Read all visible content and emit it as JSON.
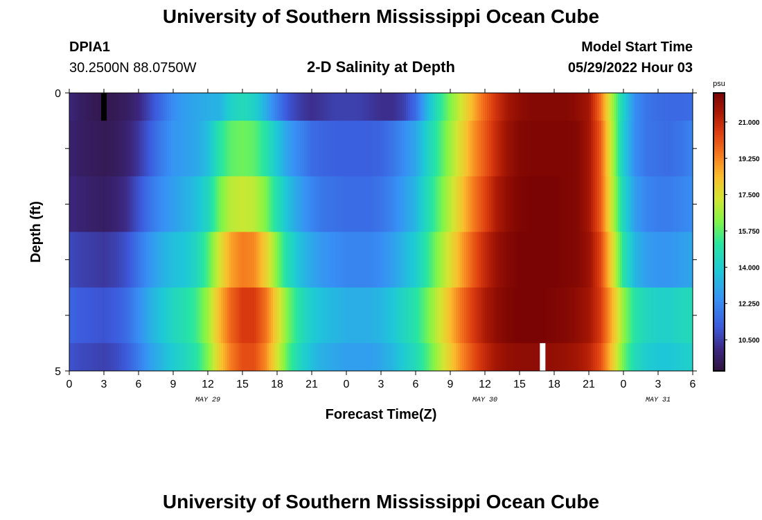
{
  "header": {
    "title": "University of Southern Mississippi Ocean Cube",
    "station_id": "DPIA1",
    "location": "30.2500N  88.0750W",
    "subtitle": "2-D Salinity at Depth",
    "model_start_label": "Model Start Time",
    "model_start_value": "05/29/2022 Hour 03"
  },
  "footer": {
    "title": "University of Southern Mississippi Ocean Cube"
  },
  "chart_data": {
    "type": "heatmap",
    "title": "2-D Salinity at Depth",
    "xlabel": "Forecast Time(Z)",
    "ylabel": "Depth (ft)",
    "x_tick_labels": [
      "0",
      "3",
      "6",
      "9",
      "12",
      "15",
      "18",
      "21",
      "0",
      "3",
      "6",
      "9",
      "12",
      "15",
      "18",
      "21",
      "0",
      "3",
      "6"
    ],
    "x_day_labels": [
      {
        "label": "MAY 29",
        "hour": 12
      },
      {
        "label": "MAY 30",
        "hour": 36
      },
      {
        "label": "MAY 31",
        "hour": 51
      }
    ],
    "x_range_hours": [
      0,
      54
    ],
    "y_tick_labels": [
      "0",
      "5"
    ],
    "y_range": [
      0,
      5
    ],
    "depth_levels": 5,
    "colorbar": {
      "unit": "psu",
      "ticks": [
        "21.000",
        "19.250",
        "17.500",
        "15.750",
        "14.000",
        "12.250",
        "10.500"
      ],
      "tick_values": [
        21.0,
        19.25,
        17.5,
        15.75,
        14.0,
        12.25,
        10.5
      ],
      "min": 9.0,
      "max": 22.4
    },
    "grid": false,
    "row_profiles": [
      {
        "row_label": "0",
        "hours": [
          0,
          1,
          2,
          3,
          4,
          5,
          6,
          7,
          8,
          9,
          10,
          11,
          12,
          13,
          14,
          15,
          16,
          17,
          18,
          19,
          20,
          21,
          22,
          23,
          24,
          25,
          26,
          27,
          28,
          29,
          30,
          31,
          32,
          33,
          34,
          35,
          36,
          37,
          38,
          39,
          40,
          41,
          42,
          43,
          44,
          45,
          46,
          47,
          48,
          49,
          50,
          51,
          52,
          53,
          54
        ],
        "values": [
          10.0,
          9.6,
          9.4,
          9.3,
          9.4,
          9.6,
          10.0,
          10.8,
          11.6,
          12.4,
          12.8,
          13.0,
          13.2,
          13.3,
          14.2,
          14.6,
          14.2,
          13.2,
          12.0,
          11.0,
          10.5,
          10.2,
          10.4,
          10.6,
          10.6,
          10.6,
          10.4,
          10.2,
          10.2,
          10.6,
          11.6,
          13.4,
          15.0,
          16.2,
          17.4,
          18.6,
          19.8,
          20.8,
          21.6,
          22.0,
          22.2,
          22.2,
          22.2,
          22.2,
          22.0,
          21.6,
          19.6,
          16.8,
          14.2,
          12.4,
          11.8,
          11.6,
          11.5,
          11.5,
          11.6
        ]
      },
      {
        "row_label": "1",
        "hours": [
          0,
          1,
          2,
          3,
          4,
          5,
          6,
          7,
          8,
          9,
          10,
          11,
          12,
          13,
          14,
          15,
          16,
          17,
          18,
          19,
          20,
          21,
          22,
          23,
          24,
          25,
          26,
          27,
          28,
          29,
          30,
          31,
          32,
          33,
          34,
          35,
          36,
          37,
          38,
          39,
          40,
          41,
          42,
          43,
          44,
          45,
          46,
          47,
          48,
          49,
          50,
          51,
          52,
          53,
          54
        ],
        "values": [
          9.8,
          9.6,
          9.5,
          9.4,
          9.5,
          9.8,
          10.4,
          11.2,
          12.0,
          12.6,
          12.8,
          13.0,
          13.6,
          15.0,
          15.8,
          16.0,
          15.8,
          15.0,
          13.8,
          12.8,
          12.2,
          11.6,
          11.4,
          11.3,
          11.3,
          11.3,
          11.3,
          11.4,
          11.8,
          12.4,
          13.0,
          14.2,
          15.4,
          16.6,
          17.8,
          19.0,
          20.0,
          21.0,
          21.8,
          22.2,
          22.3,
          22.3,
          22.3,
          22.3,
          22.2,
          21.6,
          20.0,
          17.0,
          14.0,
          12.4,
          11.8,
          11.7,
          11.6,
          11.8,
          12.2
        ]
      },
      {
        "row_label": "2",
        "hours": [
          0,
          1,
          2,
          3,
          4,
          5,
          6,
          7,
          8,
          9,
          10,
          11,
          12,
          13,
          14,
          15,
          16,
          17,
          18,
          19,
          20,
          21,
          22,
          23,
          24,
          25,
          26,
          27,
          28,
          29,
          30,
          31,
          32,
          33,
          34,
          35,
          36,
          37,
          38,
          39,
          40,
          41,
          42,
          43,
          44,
          45,
          46,
          47,
          48,
          49,
          50,
          51,
          52,
          53,
          54
        ],
        "values": [
          10.0,
          9.8,
          9.7,
          9.6,
          9.8,
          10.2,
          11.0,
          11.8,
          12.4,
          12.8,
          13.2,
          13.6,
          14.4,
          16.0,
          17.0,
          17.2,
          17.0,
          16.2,
          14.8,
          13.6,
          12.8,
          12.2,
          11.8,
          11.7,
          11.6,
          11.6,
          11.6,
          11.8,
          12.2,
          12.8,
          13.4,
          14.6,
          15.8,
          17.0,
          18.2,
          19.4,
          20.4,
          21.4,
          22.0,
          22.3,
          22.4,
          22.4,
          22.4,
          22.3,
          22.2,
          21.6,
          20.0,
          17.2,
          14.4,
          12.8,
          12.2,
          12.0,
          12.0,
          12.2,
          12.4
        ]
      },
      {
        "row_label": "3",
        "hours": [
          0,
          1,
          2,
          3,
          4,
          5,
          6,
          7,
          8,
          9,
          10,
          11,
          12,
          13,
          14,
          15,
          16,
          17,
          18,
          19,
          20,
          21,
          22,
          23,
          24,
          25,
          26,
          27,
          28,
          29,
          30,
          31,
          32,
          33,
          34,
          35,
          36,
          37,
          38,
          39,
          40,
          41,
          42,
          43,
          44,
          45,
          46,
          47,
          48,
          49,
          50,
          51,
          52,
          53,
          54
        ],
        "values": [
          10.8,
          10.6,
          10.5,
          10.4,
          10.6,
          11.0,
          11.8,
          12.6,
          13.2,
          13.6,
          13.8,
          14.4,
          15.6,
          17.4,
          18.8,
          19.4,
          19.2,
          18.0,
          16.2,
          14.6,
          13.6,
          13.0,
          12.6,
          12.4,
          12.2,
          12.2,
          12.2,
          12.4,
          12.8,
          13.4,
          14.0,
          15.2,
          16.4,
          17.6,
          18.8,
          20.0,
          21.0,
          21.8,
          22.2,
          22.4,
          22.4,
          22.4,
          22.4,
          22.3,
          22.2,
          21.8,
          20.4,
          17.8,
          15.0,
          13.4,
          12.8,
          12.6,
          12.6,
          12.8,
          13.0
        ]
      },
      {
        "row_label": "4",
        "hours": [
          0,
          1,
          2,
          3,
          4,
          5,
          6,
          7,
          8,
          9,
          10,
          11,
          12,
          13,
          14,
          15,
          16,
          17,
          18,
          19,
          20,
          21,
          22,
          23,
          24,
          25,
          26,
          27,
          28,
          29,
          30,
          31,
          32,
          33,
          34,
          35,
          36,
          37,
          38,
          39,
          40,
          41,
          42,
          43,
          44,
          45,
          46,
          47,
          48,
          49,
          50,
          51,
          52,
          53,
          54
        ],
        "values": [
          11.4,
          11.2,
          11.1,
          11.0,
          11.2,
          11.6,
          12.4,
          13.2,
          13.8,
          14.4,
          14.8,
          15.4,
          16.6,
          18.4,
          19.8,
          20.6,
          20.6,
          19.6,
          17.8,
          16.0,
          14.8,
          14.0,
          13.6,
          13.4,
          13.2,
          13.2,
          13.2,
          13.4,
          13.8,
          14.4,
          15.0,
          16.0,
          17.2,
          18.4,
          19.6,
          20.6,
          21.4,
          22.0,
          22.3,
          22.4,
          22.4,
          22.4,
          22.3,
          22.2,
          22.0,
          21.6,
          20.6,
          18.6,
          16.4,
          15.0,
          14.4,
          14.2,
          14.2,
          14.4,
          14.6
        ]
      }
    ]
  }
}
